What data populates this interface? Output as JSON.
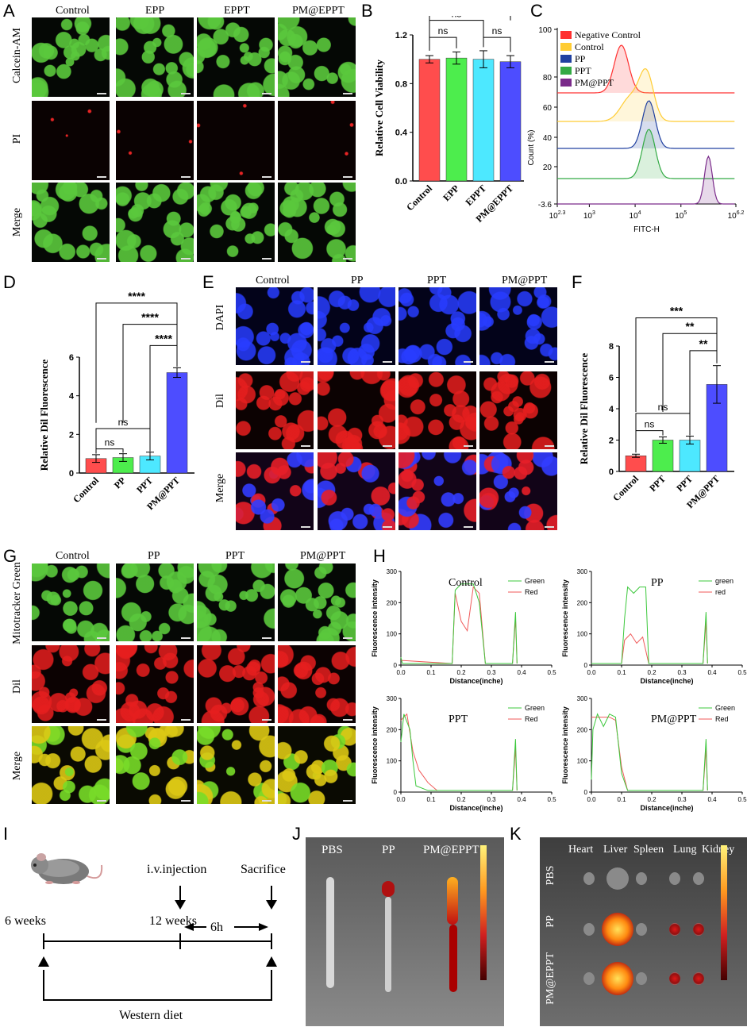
{
  "panels": {
    "A": "A",
    "B": "B",
    "C": "C",
    "D": "D",
    "E": "E",
    "F": "F",
    "G": "G",
    "H": "H",
    "I": "I",
    "J": "J",
    "K": "K"
  },
  "panel_A": {
    "columns": [
      "Control",
      "EPP",
      "EPPT",
      "PM@EPPT"
    ],
    "rows": [
      "Calcein-AM",
      "PI",
      "Merge"
    ]
  },
  "panel_E": {
    "columns": [
      "Control",
      "PP",
      "PPT",
      "PM@PPT"
    ],
    "rows": [
      "DAPI",
      "Dil",
      "Merge"
    ]
  },
  "panel_G": {
    "columns": [
      "Control",
      "PP",
      "PPT",
      "PM@PPT"
    ],
    "rows": [
      "Mitotracker Green",
      "Dil",
      "Merge"
    ]
  },
  "chart_data": [
    {
      "panel": "B",
      "type": "bar",
      "categories": [
        "Control",
        "EPP",
        "EPPT",
        "PM@EPPT"
      ],
      "values": [
        1.0,
        1.01,
        1.0,
        0.98
      ],
      "errors": [
        0.03,
        0.05,
        0.07,
        0.05
      ],
      "colors": [
        "#ff4d4d",
        "#4ded4d",
        "#4de8ff",
        "#4d4dff"
      ],
      "ylabel": "Relative Cell Viability",
      "ylim": [
        0,
        1.2
      ],
      "yticks": [
        "0.0",
        "0.4",
        "0.8",
        "1.2"
      ],
      "annotations": [
        "ns",
        "ns",
        "ns",
        "ns"
      ]
    },
    {
      "panel": "C",
      "type": "area",
      "xlabel": "FITC-H",
      "ylabel": "Count (%)",
      "xticks": [
        "10^2.3",
        "10^3",
        "10^4",
        "10^5",
        "10^6.2"
      ],
      "yticks": [
        "-3.6",
        "20",
        "40",
        "60",
        "80",
        "100"
      ],
      "series": [
        {
          "name": "Negative Control",
          "color": "#ff3030",
          "peak_log": 3.7
        },
        {
          "name": "Control",
          "color": "#ffcc33",
          "peak_log": 4.25
        },
        {
          "name": "PP",
          "color": "#2040a0",
          "peak_log": 4.3
        },
        {
          "name": "PPT",
          "color": "#33aa44",
          "peak_log": 4.3
        },
        {
          "name": "PM@PPT",
          "color": "#7a2a8a",
          "peak_log": 5.6
        }
      ]
    },
    {
      "panel": "D",
      "type": "bar",
      "categories": [
        "Control",
        "PP",
        "PPT",
        "PM@PPT"
      ],
      "values": [
        0.75,
        0.8,
        0.88,
        5.2
      ],
      "errors": [
        0.2,
        0.2,
        0.2,
        0.25
      ],
      "colors": [
        "#ff4d4d",
        "#4ded4d",
        "#4de8ff",
        "#4d4dff"
      ],
      "ylabel": "Relative Dil Fluorescence",
      "ylim": [
        0,
        6
      ],
      "yticks": [
        "0",
        "2",
        "4",
        "6"
      ],
      "annotations": [
        "****",
        "****",
        "****",
        "ns",
        "ns"
      ]
    },
    {
      "panel": "F",
      "type": "bar",
      "categories": [
        "Control",
        "PPT",
        "PPT",
        "PM@PPT"
      ],
      "values": [
        1.0,
        2.0,
        2.0,
        5.55
      ],
      "errors": [
        0.1,
        0.2,
        0.25,
        1.2
      ],
      "colors": [
        "#ff4d4d",
        "#4ded4d",
        "#4de8ff",
        "#4d4dff"
      ],
      "ylabel": "Relative Dil Fluorescence",
      "ylim": [
        0,
        8
      ],
      "yticks": [
        "0",
        "2",
        "4",
        "6",
        "8"
      ],
      "annotations": [
        "***",
        "**",
        "**",
        "ns",
        "ns"
      ]
    },
    {
      "panel": "H",
      "type": "line",
      "charts": [
        {
          "title": "Control",
          "legend": [
            "Green",
            "Red"
          ]
        },
        {
          "title": "PP",
          "legend": [
            "green",
            "red"
          ]
        },
        {
          "title": "PPT",
          "legend": [
            "Green",
            "Red"
          ]
        },
        {
          "title": "PM@PPT",
          "legend": [
            "Green",
            "Red"
          ]
        }
      ],
      "xlabel": "Distance(inche)",
      "ylabel": "Fluorescence intensity",
      "xticks": [
        "0.0",
        "0.1",
        "0.2",
        "0.3",
        "0.4",
        "0.5"
      ],
      "yticks": [
        "0",
        "100",
        "200",
        "300"
      ],
      "xlim": [
        0,
        0.5
      ],
      "ylim": [
        0,
        300
      ]
    }
  ],
  "panel_I": {
    "t1": "6 weeks",
    "t2": "12 weeks",
    "t3": "i.v.injection",
    "t4": "Sacrifice",
    "t5": "6h",
    "t6": "Western diet"
  },
  "panel_J": {
    "labels": [
      "PBS",
      "PP",
      "PM@EPPT"
    ]
  },
  "panel_K": {
    "organs": [
      "Heart",
      "Liver",
      "Spleen",
      "Lung",
      "Kidney"
    ],
    "rows": [
      "PBS",
      "PP",
      "PM@EPPT"
    ]
  }
}
